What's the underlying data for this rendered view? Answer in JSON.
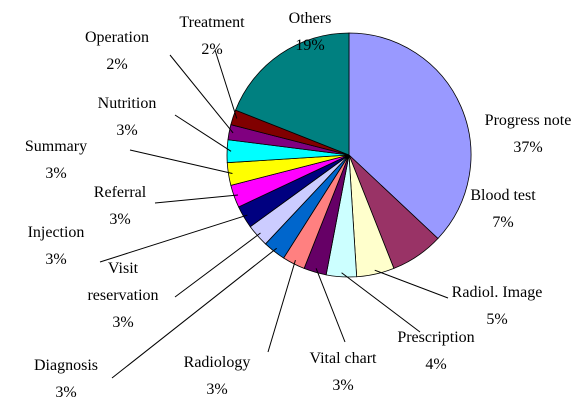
{
  "chart_data": {
    "type": "pie",
    "categories": [
      "Progress note",
      "Blood test",
      "Radiol. Image",
      "Prescription",
      "Vital chart",
      "Radiology",
      "Diagnosis",
      "Visit reservation",
      "Injection",
      "Referral",
      "Summary",
      "Nutrition",
      "Operation",
      "Treatment",
      "Others"
    ],
    "values": [
      37,
      7,
      5,
      4,
      3,
      3,
      3,
      3,
      3,
      3,
      3,
      3,
      2,
      2,
      19
    ],
    "value_labels": [
      "37%",
      "7%",
      "5%",
      "4%",
      "3%",
      "3%",
      "3%",
      "3%",
      "3%",
      "3%",
      "3%",
      "3%",
      "2%",
      "2%",
      "19%"
    ],
    "colors": [
      "#9999ff",
      "#993366",
      "#ffffcc",
      "#ccffff",
      "#660066",
      "#ff8080",
      "#0066cc",
      "#ccccff",
      "#000080",
      "#ff00ff",
      "#ffff00",
      "#00ffff",
      "#800080",
      "#800000",
      "#008080"
    ]
  }
}
